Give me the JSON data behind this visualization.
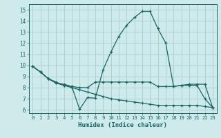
{
  "xlabel": "Humidex (Indice chaleur)",
  "bg_color": "#ceeaea",
  "grid_color": "#aed0d0",
  "line_color": "#1a6666",
  "x_ticks": [
    0,
    1,
    2,
    3,
    4,
    5,
    6,
    7,
    8,
    9,
    10,
    11,
    12,
    13,
    14,
    15,
    16,
    17,
    18,
    19,
    20,
    21,
    22,
    23
  ],
  "y_ticks": [
    6,
    7,
    8,
    9,
    10,
    11,
    12,
    13,
    14,
    15
  ],
  "ylim": [
    5.7,
    15.5
  ],
  "xlim": [
    -0.5,
    23.5
  ],
  "line1_x": [
    0,
    1,
    2,
    3,
    4,
    5,
    6,
    7,
    8,
    9,
    10,
    11,
    12,
    13,
    14,
    15,
    16,
    17,
    18,
    19,
    20,
    21,
    22,
    23
  ],
  "line1_y": [
    9.9,
    9.4,
    8.8,
    8.4,
    8.3,
    8.1,
    6.05,
    7.1,
    7.05,
    9.6,
    11.2,
    12.6,
    13.6,
    14.3,
    14.85,
    14.85,
    13.3,
    12.0,
    8.1,
    8.2,
    8.2,
    8.2,
    7.0,
    6.2
  ],
  "line2_x": [
    0,
    1,
    2,
    3,
    4,
    5,
    6,
    7,
    8,
    9,
    10,
    11,
    12,
    13,
    14,
    15,
    16,
    17,
    18,
    19,
    20,
    21,
    22,
    23
  ],
  "line2_y": [
    9.9,
    9.4,
    8.8,
    8.5,
    8.2,
    8.1,
    8.0,
    8.0,
    8.5,
    8.5,
    8.5,
    8.5,
    8.5,
    8.5,
    8.5,
    8.5,
    8.1,
    8.1,
    8.1,
    8.2,
    8.3,
    8.3,
    8.3,
    6.2
  ],
  "line3_x": [
    0,
    1,
    2,
    3,
    4,
    5,
    6,
    7,
    8,
    9,
    10,
    11,
    12,
    13,
    14,
    15,
    16,
    17,
    18,
    19,
    20,
    21,
    22,
    23
  ],
  "line3_y": [
    9.9,
    9.4,
    8.8,
    8.4,
    8.2,
    8.0,
    7.8,
    7.6,
    7.4,
    7.2,
    7.0,
    6.9,
    6.8,
    6.7,
    6.6,
    6.5,
    6.4,
    6.4,
    6.4,
    6.4,
    6.4,
    6.4,
    6.3,
    6.2
  ]
}
